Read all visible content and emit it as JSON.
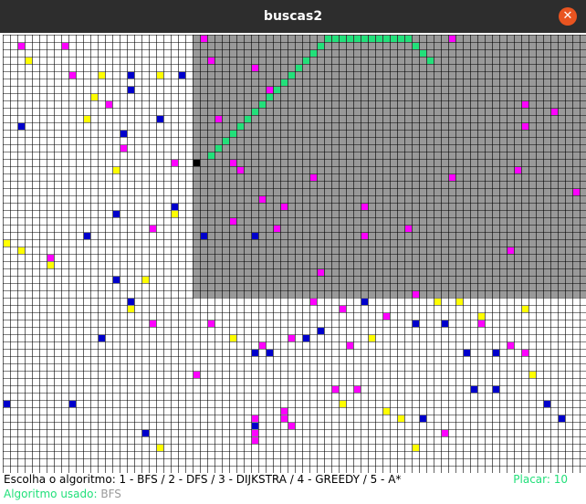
{
  "window": {
    "title": "buscas2"
  },
  "footer": {
    "prompt": "Escolha o algoritmo: 1 - BFS / 2 - DFS / 3 - DIJKSTRA / 4 - GREEDY / 5 - A*",
    "score": "Placar: 10",
    "algo_label": "Algoritmo usado:",
    "algo_value": "BFS"
  },
  "colors": {
    "grid_line": "#000000",
    "empty": "#ffffff",
    "explored": "#999999",
    "path": "#22e07a",
    "magenta": "#ff00ff",
    "blue": "#0000cc",
    "yellow": "#ffff00",
    "agent": "#000000"
  },
  "board": {
    "cols": 80,
    "rows": 60,
    "explored_cols": [
      26,
      79
    ],
    "explored_rows": [
      0,
      35
    ],
    "path": [
      [
        28,
        16
      ],
      [
        29,
        15
      ],
      [
        30,
        14
      ],
      [
        31,
        13
      ],
      [
        32,
        12
      ],
      [
        33,
        11
      ],
      [
        34,
        10
      ],
      [
        35,
        9
      ],
      [
        36,
        8
      ],
      [
        37,
        7
      ],
      [
        38,
        6
      ],
      [
        39,
        5
      ],
      [
        40,
        4
      ],
      [
        41,
        3
      ],
      [
        42,
        2
      ],
      [
        43,
        1
      ],
      [
        44,
        0
      ],
      [
        45,
        0
      ],
      [
        46,
        0
      ],
      [
        47,
        0
      ],
      [
        48,
        0
      ],
      [
        49,
        0
      ],
      [
        50,
        0
      ],
      [
        51,
        0
      ],
      [
        52,
        0
      ],
      [
        53,
        0
      ],
      [
        54,
        0
      ],
      [
        55,
        0
      ],
      [
        56,
        1
      ],
      [
        57,
        2
      ],
      [
        58,
        3
      ]
    ],
    "agent": [
      26,
      17
    ],
    "magenta": [
      [
        2,
        1
      ],
      [
        8,
        1
      ],
      [
        27,
        0
      ],
      [
        28,
        3
      ],
      [
        34,
        4
      ],
      [
        36,
        7
      ],
      [
        9,
        5
      ],
      [
        14,
        9
      ],
      [
        29,
        11
      ],
      [
        16,
        13
      ],
      [
        16,
        15
      ],
      [
        23,
        17
      ],
      [
        31,
        17
      ],
      [
        32,
        18
      ],
      [
        42,
        19
      ],
      [
        35,
        22
      ],
      [
        38,
        23
      ],
      [
        49,
        23
      ],
      [
        31,
        25
      ],
      [
        37,
        26
      ],
      [
        55,
        26
      ],
      [
        49,
        27
      ],
      [
        61,
        19
      ],
      [
        70,
        18
      ],
      [
        75,
        10
      ],
      [
        78,
        21
      ],
      [
        71,
        9
      ],
      [
        69,
        29
      ],
      [
        20,
        26
      ],
      [
        6,
        30
      ],
      [
        43,
        32
      ],
      [
        56,
        35
      ],
      [
        46,
        37
      ],
      [
        42,
        36
      ],
      [
        28,
        39
      ],
      [
        20,
        39
      ],
      [
        52,
        38
      ],
      [
        47,
        42
      ],
      [
        65,
        39
      ],
      [
        71,
        43
      ],
      [
        69,
        42
      ],
      [
        26,
        46
      ],
      [
        39,
        41
      ],
      [
        34,
        43
      ],
      [
        35,
        42
      ],
      [
        45,
        48
      ],
      [
        48,
        48
      ],
      [
        38,
        51
      ],
      [
        38,
        52
      ],
      [
        39,
        53
      ],
      [
        34,
        52
      ],
      [
        60,
        54
      ],
      [
        34,
        54
      ],
      [
        34,
        55
      ],
      [
        61,
        0
      ],
      [
        71,
        12
      ]
    ],
    "blue": [
      [
        17,
        5
      ],
      [
        24,
        5
      ],
      [
        17,
        7
      ],
      [
        21,
        11
      ],
      [
        2,
        12
      ],
      [
        16,
        13
      ],
      [
        23,
        23
      ],
      [
        15,
        24
      ],
      [
        11,
        27
      ],
      [
        15,
        33
      ],
      [
        17,
        36
      ],
      [
        43,
        40
      ],
      [
        49,
        36
      ],
      [
        41,
        41
      ],
      [
        56,
        39
      ],
      [
        60,
        39
      ],
      [
        13,
        41
      ],
      [
        34,
        43
      ],
      [
        36,
        43
      ],
      [
        63,
        43
      ],
      [
        67,
        43
      ],
      [
        64,
        48
      ],
      [
        74,
        50
      ],
      [
        0,
        50
      ],
      [
        9,
        50
      ],
      [
        19,
        54
      ],
      [
        34,
        53
      ],
      [
        57,
        52
      ],
      [
        67,
        48
      ],
      [
        27,
        27
      ],
      [
        34,
        27
      ],
      [
        76,
        52
      ]
    ],
    "yellow": [
      [
        3,
        3
      ],
      [
        13,
        5
      ],
      [
        21,
        5
      ],
      [
        12,
        8
      ],
      [
        11,
        11
      ],
      [
        15,
        18
      ],
      [
        23,
        24
      ],
      [
        0,
        28
      ],
      [
        2,
        29
      ],
      [
        6,
        31
      ],
      [
        19,
        33
      ],
      [
        17,
        37
      ],
      [
        31,
        41
      ],
      [
        50,
        41
      ],
      [
        59,
        36
      ],
      [
        65,
        38
      ],
      [
        71,
        37
      ],
      [
        72,
        46
      ],
      [
        72,
        46
      ],
      [
        52,
        51
      ],
      [
        54,
        52
      ],
      [
        46,
        50
      ],
      [
        21,
        56
      ],
      [
        56,
        56
      ],
      [
        62,
        36
      ]
    ]
  }
}
